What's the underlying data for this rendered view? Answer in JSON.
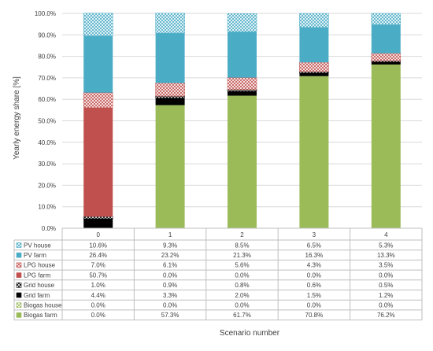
{
  "chart_data": {
    "type": "stacked-bar-with-data-table",
    "categories": [
      "0",
      "1",
      "2",
      "3",
      "4"
    ],
    "xlabel": "Scenario number",
    "ylabel": "Yearly energy share [%]",
    "ylim": [
      0,
      100
    ],
    "y_ticks": [
      "0.0%",
      "10.0%",
      "20.0%",
      "30.0%",
      "40.0%",
      "50.0%",
      "60.0%",
      "70.0%",
      "80.0%",
      "90.0%",
      "100.0%"
    ],
    "grid": true,
    "legend": "data table rows (left)",
    "series": [
      {
        "name": "Biogas farm",
        "color": "#9bbb59",
        "pattern": "solid",
        "values": [
          0.0,
          57.3,
          61.7,
          70.8,
          76.2
        ],
        "labels": [
          "0.0%",
          "57.3%",
          "61.7%",
          "70.8%",
          "76.2%"
        ]
      },
      {
        "name": "Biogas house",
        "color": "#9bbb59",
        "pattern": "crosshatch",
        "values": [
          0.0,
          0.0,
          0.0,
          0.0,
          0.0
        ],
        "labels": [
          "0.0%",
          "0.0%",
          "0.0%",
          "0.0%",
          "0.0%"
        ]
      },
      {
        "name": "Grid farm",
        "color": "#000000",
        "pattern": "solid",
        "values": [
          4.4,
          3.3,
          2.0,
          1.5,
          1.2
        ],
        "labels": [
          "4.4%",
          "3.3%",
          "2.0%",
          "1.5%",
          "1.2%"
        ]
      },
      {
        "name": "Grid house",
        "color": "#000000",
        "pattern": "crosshatch",
        "values": [
          1.0,
          0.9,
          0.8,
          0.6,
          0.5
        ],
        "labels": [
          "1.0%",
          "0.9%",
          "0.8%",
          "0.6%",
          "0.5%"
        ]
      },
      {
        "name": "LPG farm",
        "color": "#c0504d",
        "pattern": "solid",
        "values": [
          50.7,
          0.0,
          0.0,
          0.0,
          0.0
        ],
        "labels": [
          "50.7%",
          "0.0%",
          "0.0%",
          "0.0%",
          "0.0%"
        ]
      },
      {
        "name": "LPG house",
        "color": "#c0504d",
        "pattern": "crosshatch",
        "values": [
          7.0,
          6.1,
          5.6,
          4.3,
          3.5
        ],
        "labels": [
          "7.0%",
          "6.1%",
          "5.6%",
          "4.3%",
          "3.5%"
        ]
      },
      {
        "name": "PV farm",
        "color": "#4bacc6",
        "pattern": "solid",
        "values": [
          26.4,
          23.2,
          21.3,
          16.3,
          13.3
        ],
        "labels": [
          "26.4%",
          "23.2%",
          "21.3%",
          "16.3%",
          "13.3%"
        ]
      },
      {
        "name": "PV house",
        "color": "#4bacc6",
        "pattern": "crosshatch",
        "values": [
          10.6,
          9.3,
          8.5,
          6.5,
          5.3
        ],
        "labels": [
          "10.6%",
          "9.3%",
          "8.5%",
          "6.5%",
          "5.3%"
        ]
      }
    ],
    "table_row_order": [
      "PV house",
      "PV farm",
      "LPG house",
      "LPG farm",
      "Grid house",
      "Grid farm",
      "Biogas house",
      "Biogas farm"
    ]
  }
}
